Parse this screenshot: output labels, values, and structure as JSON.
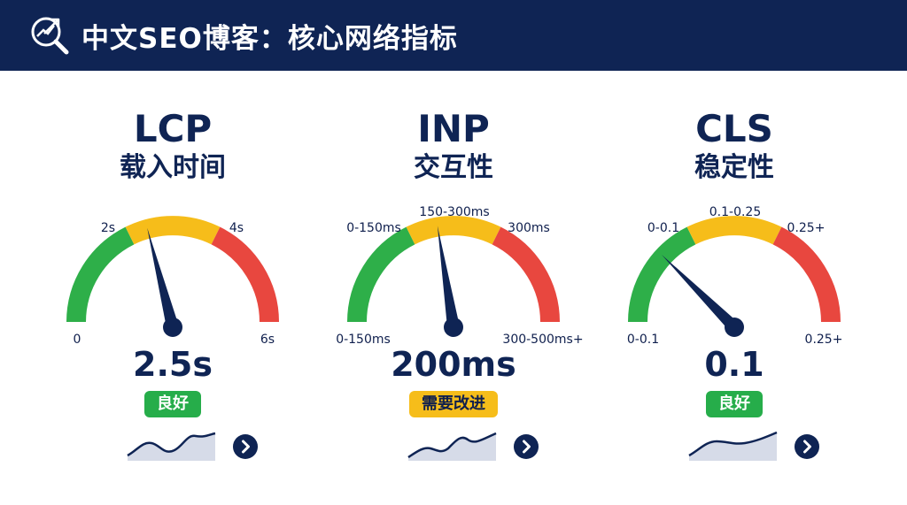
{
  "header": {
    "title": "中文SEO博客：核心网络指标",
    "icon": "analytics-search-icon"
  },
  "colors": {
    "header_bg": "#0f2454",
    "good": "#2eaf49",
    "needs_improvement": "#f6bd1a",
    "poor": "#e8473f",
    "needle": "#0f2454"
  },
  "metrics": [
    {
      "code": "LCP",
      "name": "载入时间",
      "value": "2.5s",
      "status": "良好",
      "status_level": "good",
      "labels": {
        "min": "0",
        "good_threshold": "2s",
        "poor_threshold": "4s",
        "max": "6s"
      },
      "gauge_level": 0.42,
      "trend_icon": "sparkline-icon",
      "action_icon": "chevron-right-icon"
    },
    {
      "code": "INP",
      "name": "交互性",
      "value": "200ms",
      "status": "需要改进",
      "status_level": "needs_improvement",
      "labels": {
        "left_top": "0-150ms",
        "middle_top": "150-300ms",
        "right_top": "300ms",
        "left_bottom": "0-150ms",
        "right_bottom": "300-500ms+"
      },
      "gauge_level": 0.45,
      "trend_icon": "sparkline-icon",
      "action_icon": "chevron-right-icon"
    },
    {
      "code": "CLS",
      "name": "稳定性",
      "value": "0.1",
      "status": "良好",
      "status_level": "good",
      "labels": {
        "left_top": "0-0.1",
        "middle_top": "0.1-0.25",
        "right_top": "0.25+",
        "left_bottom": "0-0.1",
        "right_bottom": "0.25+"
      },
      "gauge_level": 0.25,
      "trend_icon": "sparkline-icon",
      "action_icon": "chevron-right-icon"
    }
  ]
}
